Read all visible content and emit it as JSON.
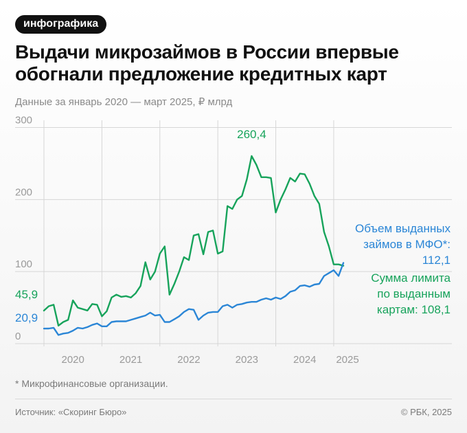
{
  "badge": "инфографика",
  "title": "Выдачи микрозаймов в России впервые обогнали предложение кредитных карт",
  "subtitle": "Данные за январь 2020 — март 2025, ₽ млрд",
  "footnote": "* Микрофинансовые организации.",
  "source": "Источник: «Скоринг Бюро»",
  "copyright": "© РБК, 2025",
  "colors": {
    "mfo": "#2b86d6",
    "cards": "#17a35b",
    "grid": "#d6d6d6",
    "tick": "#9a9a9a"
  },
  "chart_data": {
    "type": "line",
    "title": "Выдачи микрозаймов в России впервые обогнали предложение кредитных карт",
    "subtitle": "Данные за январь 2020 — март 2025, ₽ млрд",
    "xlabel": "",
    "ylabel": "₽ млрд",
    "ylim": [
      0,
      310
    ],
    "yticks": [
      0,
      100,
      200,
      300
    ],
    "xticks": [
      "2020",
      "2021",
      "2022",
      "2023",
      "2024",
      "2025"
    ],
    "x_start": "2020-01",
    "grid": true,
    "series": [
      {
        "name": "Сумма лимита по выданным картам",
        "legend": [
          "Сумма лимита",
          "по выданным",
          "картам: 108,1"
        ],
        "color": "#17a35b",
        "values": [
          45.9,
          52,
          54,
          25,
          30,
          33,
          60,
          50,
          48,
          46,
          55,
          54,
          38,
          45,
          64,
          68,
          65,
          66,
          64,
          70,
          80,
          113,
          89,
          100,
          125,
          135,
          68,
          83,
          100,
          120,
          116,
          150,
          152,
          124,
          155,
          157,
          125,
          128,
          191,
          187,
          200,
          205,
          228,
          260.4,
          248,
          231,
          231,
          230,
          182,
          200,
          214,
          230,
          225,
          236,
          235,
          222,
          205,
          194,
          155,
          135,
          110,
          110,
          108.1
        ]
      },
      {
        "name": "Объем выданных займов в МФО*",
        "legend": [
          "Объем выданных",
          "займов в МФО*:",
          "112,1"
        ],
        "color": "#2b86d6",
        "values": [
          20.9,
          21,
          22,
          12,
          14,
          15,
          18,
          22,
          21,
          23,
          26,
          28,
          24,
          24,
          30,
          31,
          31,
          31,
          33,
          35,
          37,
          39,
          43,
          39,
          40,
          30,
          30,
          34,
          38,
          44,
          48,
          47,
          33,
          39,
          43,
          44,
          44,
          52,
          54,
          50,
          54,
          55,
          57,
          58,
          58,
          61,
          63,
          61,
          64,
          62,
          66,
          72,
          74,
          80,
          81,
          79,
          82,
          83,
          94,
          98,
          102,
          94,
          112.1
        ]
      }
    ],
    "annotations": [
      {
        "text": "45,9",
        "series": 0,
        "index": 0
      },
      {
        "text": "20,9",
        "series": 1,
        "index": 0
      },
      {
        "text": "260,4",
        "series": 0,
        "index": 43
      }
    ]
  }
}
